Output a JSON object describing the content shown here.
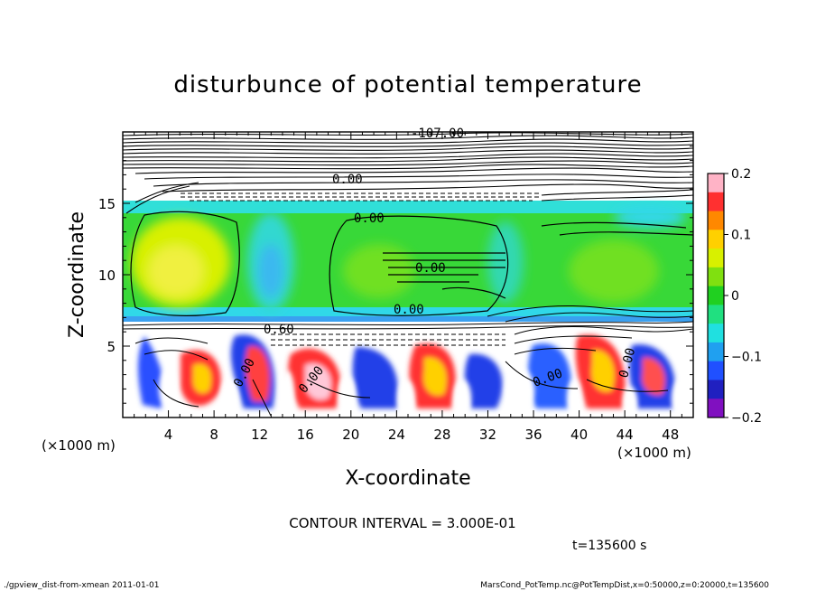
{
  "chart_data": {
    "type": "heatmap",
    "title": "disturbunce of potential temperature",
    "xlabel": "X-coordinate",
    "ylabel": "Z-coordinate",
    "x_unit_left": "(×1000 m)",
    "x_unit_right": "(×1000 m)",
    "y_unit": "(×1000 m)",
    "xlim": [
      0,
      50
    ],
    "ylim": [
      0,
      20
    ],
    "x_ticks": [
      4,
      8,
      12,
      16,
      20,
      24,
      28,
      32,
      36,
      40,
      44,
      48
    ],
    "y_ticks": [
      5,
      10,
      15
    ],
    "colorbar": {
      "range": [
        -0.2,
        0.2
      ],
      "tick_values": [
        0.2,
        0.1,
        0,
        -0.1,
        -0.2
      ],
      "tick_labels": [
        "0.2",
        "0.1",
        "0",
        "−0.1",
        "−0.2"
      ],
      "colors": [
        "#ffb3c6",
        "#ff3030",
        "#ff8800",
        "#ffd000",
        "#d8f000",
        "#80e010",
        "#20d020",
        "#20e080",
        "#20e0e0",
        "#20a0f0",
        "#2050ff",
        "#2020c0",
        "#8010c0"
      ]
    },
    "contour_labels": [
      "-107.00",
      "0.00",
      "0.00",
      "0.00",
      "0.00",
      "0.60",
      "0.00",
      "0.00",
      "0.00",
      "0.00"
    ],
    "contour_interval": "CONTOUR INTERVAL = 3.000E-01",
    "time_label": "t=135600 s"
  },
  "footer": {
    "left": "./gpview_dist-from-xmean  2011-01-01",
    "right": "MarsCond_PotTemp.nc@PotTempDist,x=0:50000,z=0:20000,t=135600"
  }
}
